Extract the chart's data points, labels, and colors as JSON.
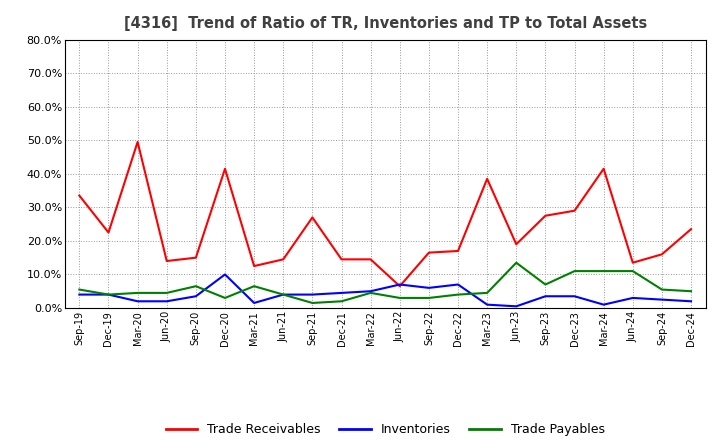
{
  "title": "[4316]  Trend of Ratio of TR, Inventories and TP to Total Assets",
  "x_labels": [
    "Sep-19",
    "Dec-19",
    "Mar-20",
    "Jun-20",
    "Sep-20",
    "Dec-20",
    "Mar-21",
    "Jun-21",
    "Sep-21",
    "Dec-21",
    "Mar-22",
    "Jun-22",
    "Sep-22",
    "Dec-22",
    "Mar-23",
    "Jun-23",
    "Sep-23",
    "Dec-23",
    "Mar-24",
    "Jun-24",
    "Sep-24",
    "Dec-24"
  ],
  "trade_receivables": [
    33.5,
    22.5,
    49.5,
    14.0,
    15.0,
    41.5,
    12.5,
    14.5,
    27.0,
    14.5,
    14.5,
    6.5,
    16.5,
    17.0,
    38.5,
    19.0,
    27.5,
    29.0,
    41.5,
    13.5,
    16.0,
    23.5
  ],
  "inventories": [
    4.0,
    4.0,
    2.0,
    2.0,
    3.5,
    10.0,
    1.5,
    4.0,
    4.0,
    4.5,
    5.0,
    7.0,
    6.0,
    7.0,
    1.0,
    0.5,
    3.5,
    3.5,
    1.0,
    3.0,
    2.5,
    2.0
  ],
  "trade_payables": [
    5.5,
    4.0,
    4.5,
    4.5,
    6.5,
    3.0,
    6.5,
    4.0,
    1.5,
    2.0,
    4.5,
    3.0,
    3.0,
    4.0,
    4.5,
    13.5,
    7.0,
    11.0,
    11.0,
    11.0,
    5.5,
    5.0
  ],
  "tr_color": "#FF0000",
  "inv_color": "#0000FF",
  "tp_color": "#008000",
  "ylim": [
    0,
    80
  ],
  "yticks": [
    0,
    10,
    20,
    30,
    40,
    50,
    60,
    70,
    80
  ],
  "title_color": "#404040",
  "background_color": "#FFFFFF",
  "legend_labels": [
    "Trade Receivables",
    "Inventories",
    "Trade Payables"
  ]
}
